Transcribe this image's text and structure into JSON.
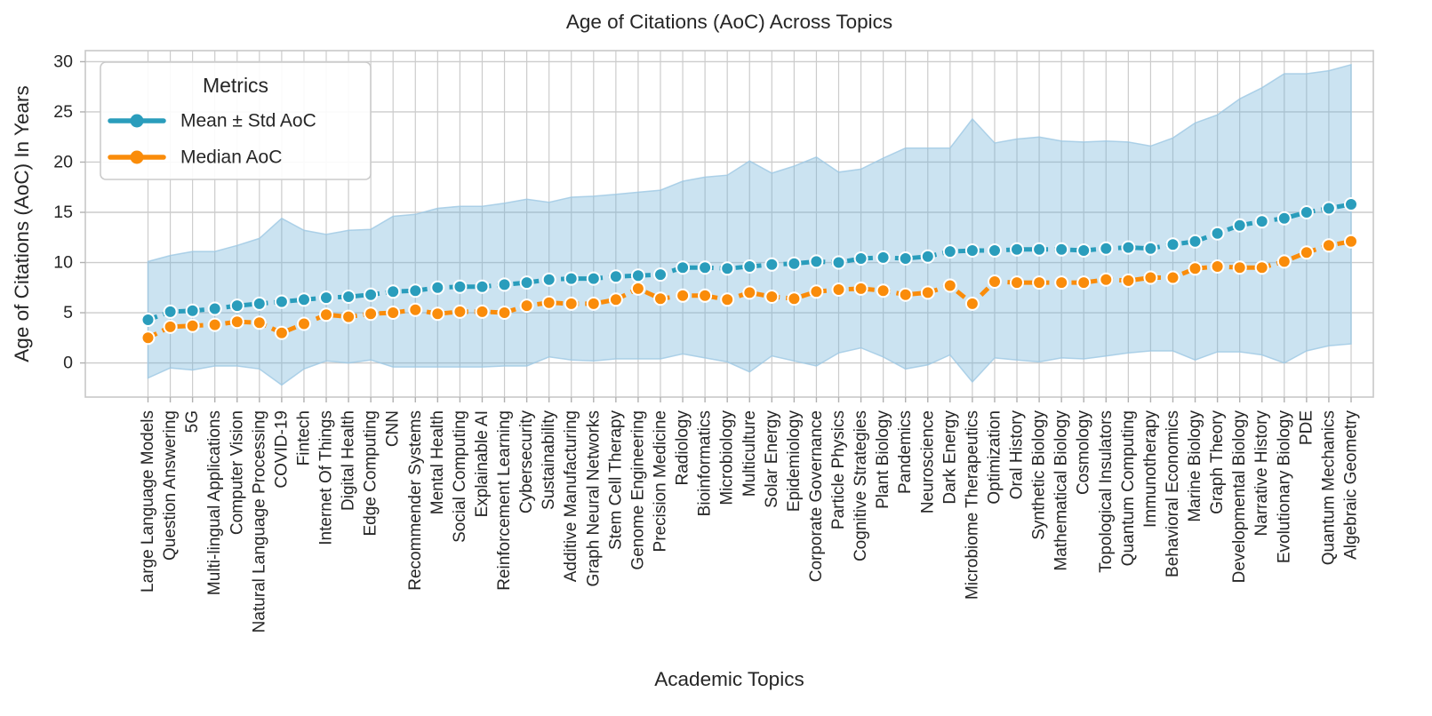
{
  "figure": {
    "title": "Age of Citations (AoC) Across Topics",
    "xlabel": "Academic Topics",
    "ylabel": "Age of Citations (AoC) In Years",
    "legend": {
      "title": "Metrics",
      "entries": [
        {
          "label": "Mean ± Std AoC",
          "color": "#2a9dbc"
        },
        {
          "label": "Median AoC",
          "color": "#fa8c0a"
        }
      ]
    }
  },
  "colors": {
    "mean_line": "#2a9dbc",
    "median_line": "#fa8c0a",
    "band_fill": "#6aaed6",
    "band_edge": "#9ec8e4",
    "grid": "#cccccc",
    "spine": "#c8c8c8",
    "tick": "#b0b0b0",
    "text": "#262626",
    "background": "#ffffff"
  },
  "chart_data": {
    "type": "line",
    "title": "Age of Citations (AoC) Across Topics",
    "xlabel": "Academic Topics",
    "ylabel": "Age of Citations (AoC) In Years",
    "grid": true,
    "legend_position": "upper left",
    "ylim": [
      -3.4,
      31.1
    ],
    "yticks": [
      0,
      5,
      10,
      15,
      20,
      25,
      30
    ],
    "categories": [
      "Large Language Models",
      "Question Answering",
      "5G",
      "Multi-lingual Applications",
      "Computer Vision",
      "Natural Language Processing",
      "COVID-19",
      "Fintech",
      "Internet Of Things",
      "Digital Health",
      "Edge Computing",
      "CNN",
      "Recommender Systems",
      "Mental Health",
      "Social Computing",
      "Explainable AI",
      "Reinforcement Learning",
      "Cybersecurity",
      "Sustainability",
      "Additive Manufacturing",
      "Graph Neural Networks",
      "Stem Cell Therapy",
      "Genome Engineering",
      "Precision Medicine",
      "Radiology",
      "Bioinformatics",
      "Microbiology",
      "Multiculture",
      "Solar Energy",
      "Epidemiology",
      "Corporate Governance",
      "Particle Physics",
      "Cognitive Strategies",
      "Plant Biology",
      "Pandemics",
      "Neuroscience",
      "Dark Energy",
      "Microbiome Therapeutics",
      "Optimization",
      "Oral History",
      "Synthetic Biology",
      "Mathematical Biology",
      "Cosmology",
      "Topological Insulators",
      "Quantum Computing",
      "Immunotherapy",
      "Behavioral Economics",
      "Marine Biology",
      "Graph Theory",
      "Developmental Biology",
      "Narrative History",
      "Evolutionary Biology",
      "PDE",
      "Quantum Mechanics",
      "Algebraic Geometry"
    ],
    "series": [
      {
        "name": "Mean ± Std AoC",
        "color": "#2a9dbc",
        "values": [
          4.3,
          5.1,
          5.2,
          5.4,
          5.7,
          5.9,
          6.1,
          6.3,
          6.5,
          6.6,
          6.8,
          7.1,
          7.2,
          7.5,
          7.6,
          7.6,
          7.8,
          8.0,
          8.3,
          8.4,
          8.4,
          8.6,
          8.7,
          8.8,
          9.5,
          9.5,
          9.4,
          9.6,
          9.8,
          9.9,
          10.1,
          10.0,
          10.4,
          10.5,
          10.4,
          10.6,
          11.1,
          11.2,
          11.2,
          11.3,
          11.3,
          11.3,
          11.2,
          11.4,
          11.5,
          11.4,
          11.8,
          12.1,
          12.9,
          13.7,
          14.1,
          14.4,
          15.0,
          15.4,
          15.8
        ]
      },
      {
        "name": "Median AoC",
        "color": "#fa8c0a",
        "values": [
          2.5,
          3.6,
          3.7,
          3.8,
          4.1,
          4.0,
          3.0,
          3.9,
          4.8,
          4.6,
          4.9,
          5.0,
          5.3,
          4.9,
          5.1,
          5.1,
          5.0,
          5.7,
          6.0,
          5.9,
          5.9,
          6.3,
          7.4,
          6.4,
          6.7,
          6.7,
          6.3,
          7.0,
          6.6,
          6.4,
          7.1,
          7.3,
          7.4,
          7.2,
          6.8,
          7.0,
          7.7,
          5.9,
          8.1,
          8.0,
          8.0,
          8.0,
          8.0,
          8.3,
          8.2,
          8.5,
          8.5,
          9.4,
          9.6,
          9.5,
          9.5,
          10.1,
          11.0,
          11.7,
          12.1
        ]
      },
      {
        "name": "Std AoC (half-width of shaded band around mean)",
        "color": "#6aaed6",
        "values": [
          5.8,
          5.6,
          5.9,
          5.7,
          6.0,
          6.5,
          8.3,
          6.9,
          6.3,
          6.6,
          6.5,
          7.5,
          7.6,
          7.9,
          8.0,
          8.0,
          8.1,
          8.3,
          7.7,
          8.1,
          8.2,
          8.2,
          8.3,
          8.4,
          8.6,
          9.0,
          9.3,
          10.5,
          9.1,
          9.7,
          10.4,
          9.0,
          8.9,
          9.9,
          11.0,
          10.8,
          10.3,
          13.1,
          10.7,
          11.0,
          11.2,
          10.8,
          10.8,
          10.7,
          10.5,
          10.2,
          10.6,
          11.8,
          11.8,
          12.6,
          13.3,
          14.4,
          13.8,
          13.7,
          13.9
        ]
      }
    ]
  }
}
